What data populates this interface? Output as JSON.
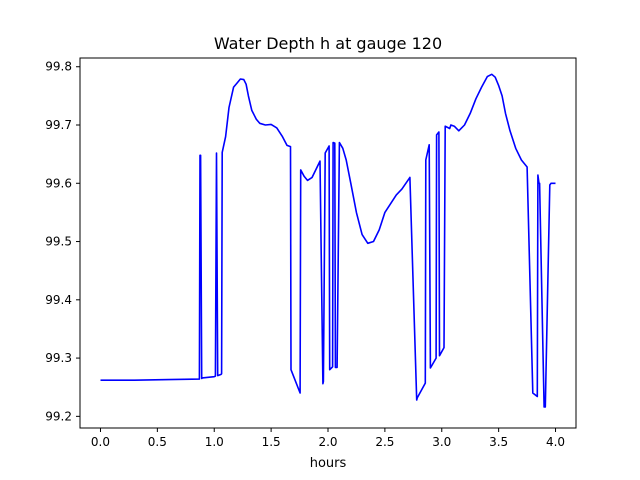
{
  "chart_data": {
    "type": "line",
    "title": "Water Depth h at gauge 120",
    "xlabel": "hours",
    "ylabel": "",
    "xlim": [
      -0.18,
      4.18
    ],
    "ylim": [
      99.18,
      99.815
    ],
    "xticks": [
      0.0,
      0.5,
      1.0,
      1.5,
      2.0,
      2.5,
      3.0,
      3.5,
      4.0
    ],
    "xtick_labels": [
      "0.0",
      "0.5",
      "1.0",
      "1.5",
      "2.0",
      "2.5",
      "3.0",
      "3.5",
      "4.0"
    ],
    "yticks": [
      99.2,
      99.3,
      99.4,
      99.5,
      99.6,
      99.7,
      99.8
    ],
    "ytick_labels": [
      "99.2",
      "99.3",
      "99.4",
      "99.5",
      "99.6",
      "99.7",
      "99.8"
    ],
    "grid": false,
    "legend": "none",
    "series": [
      {
        "color": "#0000ff",
        "x": [
          0.0,
          0.3,
          0.6,
          0.87,
          0.875,
          0.88,
          0.89,
          0.895,
          1.0,
          1.01,
          1.02,
          1.03,
          1.06,
          1.065,
          1.07,
          1.1,
          1.13,
          1.17,
          1.2,
          1.23,
          1.26,
          1.28,
          1.3,
          1.33,
          1.37,
          1.4,
          1.45,
          1.5,
          1.55,
          1.6,
          1.64,
          1.67,
          1.675,
          1.755,
          1.76,
          1.79,
          1.82,
          1.86,
          1.9,
          1.93,
          1.955,
          1.96,
          1.975,
          2.01,
          2.015,
          2.04,
          2.045,
          2.06,
          2.065,
          2.08,
          2.1,
          2.13,
          2.16,
          2.2,
          2.25,
          2.3,
          2.35,
          2.4,
          2.45,
          2.5,
          2.55,
          2.6,
          2.65,
          2.72,
          2.78,
          2.785,
          2.855,
          2.86,
          2.89,
          2.9,
          2.95,
          2.955,
          2.975,
          2.98,
          3.02,
          3.03,
          3.07,
          3.08,
          3.11,
          3.15,
          3.2,
          3.25,
          3.3,
          3.35,
          3.4,
          3.44,
          3.47,
          3.5,
          3.53,
          3.56,
          3.6,
          3.65,
          3.7,
          3.75,
          3.8,
          3.84,
          3.845,
          3.855,
          3.86,
          3.9,
          3.91,
          3.95,
          3.96,
          3.985,
          4.0
        ],
        "y": [
          99.262,
          99.262,
          99.263,
          99.264,
          99.648,
          99.648,
          99.265,
          99.266,
          99.268,
          99.269,
          99.652,
          99.27,
          99.272,
          99.273,
          99.653,
          99.68,
          99.73,
          99.765,
          99.772,
          99.779,
          99.778,
          99.77,
          99.75,
          99.725,
          99.71,
          99.703,
          99.7,
          99.701,
          99.695,
          99.68,
          99.665,
          99.663,
          99.28,
          99.24,
          99.623,
          99.612,
          99.605,
          99.61,
          99.626,
          99.638,
          99.256,
          99.26,
          99.652,
          99.664,
          99.28,
          99.285,
          99.67,
          99.669,
          99.284,
          99.284,
          99.67,
          99.66,
          99.64,
          99.6,
          99.55,
          99.512,
          99.497,
          99.5,
          99.52,
          99.55,
          99.565,
          99.58,
          99.59,
          99.61,
          99.228,
          99.232,
          99.257,
          99.64,
          99.666,
          99.283,
          99.3,
          99.683,
          99.688,
          99.304,
          99.318,
          99.698,
          99.694,
          99.7,
          99.698,
          99.69,
          99.7,
          99.72,
          99.745,
          99.765,
          99.783,
          99.787,
          99.782,
          99.768,
          99.75,
          99.72,
          99.69,
          99.66,
          99.64,
          99.628,
          99.24,
          99.234,
          99.614,
          99.6,
          99.6,
          99.216,
          99.216,
          99.597,
          99.6,
          99.6,
          99.6
        ]
      }
    ]
  }
}
